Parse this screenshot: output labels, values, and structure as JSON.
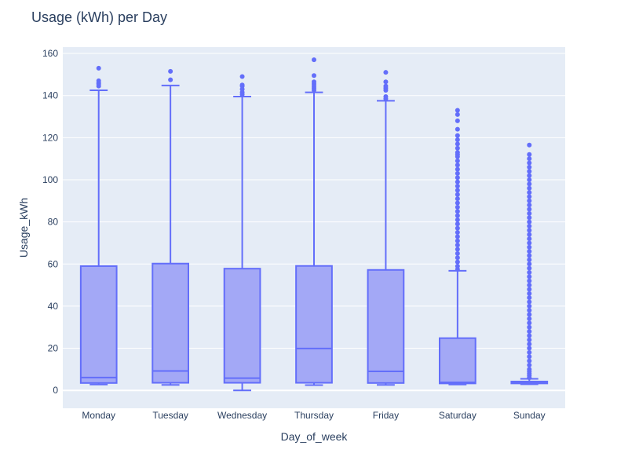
{
  "chart_data": {
    "type": "box",
    "title": "Usage (kWh) per Day",
    "xlabel": "Day_of_week",
    "ylabel": "Usage_kWh",
    "ylim": [
      -8.5,
      163
    ],
    "yticks": [
      0,
      20,
      40,
      60,
      80,
      100,
      120,
      140,
      160
    ],
    "grid": true,
    "legend": "none",
    "colors": {
      "box_line": "#636efa",
      "box_fill": "#a3a8f6",
      "plot_bg": "#e5ecf6",
      "grid": "#ffffff",
      "text": "#2a3f5f"
    },
    "categories": [
      "Monday",
      "Tuesday",
      "Wednesday",
      "Thursday",
      "Friday",
      "Saturday",
      "Sunday"
    ],
    "boxes": [
      {
        "min": 2.8,
        "q1": 3.5,
        "median": 6.1,
        "q3": 59.0,
        "max": 142.5,
        "outliers": [
          144.5,
          145.5,
          146.0,
          147.0,
          153.0
        ]
      },
      {
        "min": 2.6,
        "q1": 3.6,
        "median": 9.2,
        "q3": 60.2,
        "max": 144.8,
        "outliers": [
          147.5,
          151.5
        ]
      },
      {
        "min": 0.0,
        "q1": 3.6,
        "median": 5.8,
        "q3": 57.8,
        "max": 139.5,
        "outliers": [
          140.5,
          141.5,
          143.0,
          144.5,
          145.0,
          149.0
        ]
      },
      {
        "min": 2.5,
        "q1": 3.6,
        "median": 19.9,
        "q3": 59.1,
        "max": 141.5,
        "outliers": [
          142.5,
          143.5,
          144.5,
          145.5,
          146.5,
          149.5,
          157.0
        ]
      },
      {
        "min": 2.6,
        "q1": 3.5,
        "median": 9.0,
        "q3": 57.2,
        "max": 137.5,
        "outliers": [
          138.5,
          139.5,
          142.5,
          143.5,
          144.5,
          146.5,
          151.0
        ]
      },
      {
        "min": 2.8,
        "q1": 3.3,
        "median": 3.8,
        "q3": 24.8,
        "max": 56.8,
        "outliers": [
          57.5,
          59,
          61,
          63,
          65,
          67,
          69,
          71,
          73,
          75,
          77,
          79,
          81,
          83,
          85,
          87,
          89,
          91,
          93,
          95,
          97,
          99,
          101,
          103,
          105,
          107,
          109,
          111,
          112,
          113,
          115,
          117,
          119,
          121,
          124,
          128,
          131,
          133
        ]
      },
      {
        "min": 2.9,
        "q1": 3.3,
        "median": 3.7,
        "q3": 4.2,
        "max": 5.5,
        "outliers": [
          6,
          7,
          8,
          9,
          10,
          12,
          14,
          16,
          18,
          20,
          22,
          24,
          26,
          28,
          30,
          32,
          34,
          36,
          38,
          40,
          42,
          44,
          46,
          48,
          50,
          52,
          54,
          56,
          58,
          60,
          62,
          64,
          66,
          68,
          70,
          72,
          74,
          76,
          78,
          80,
          82,
          84,
          86,
          88,
          90,
          92,
          94,
          96,
          98,
          100,
          102,
          104,
          106,
          108,
          110,
          112,
          116.5
        ]
      }
    ]
  }
}
